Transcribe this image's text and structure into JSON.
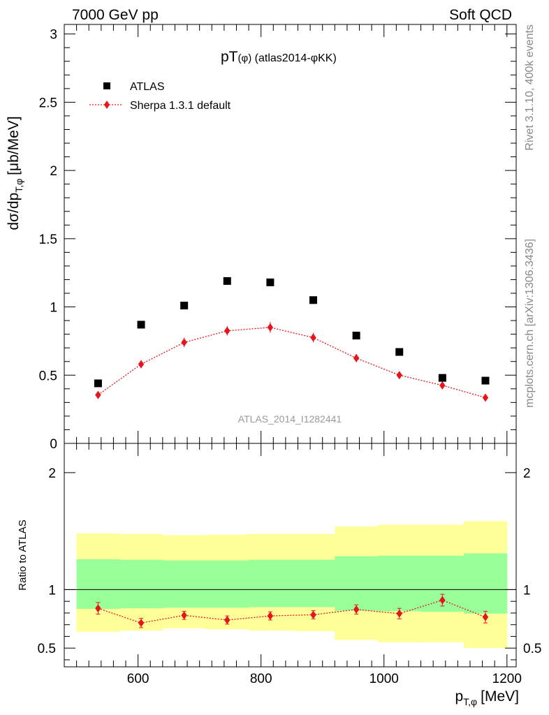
{
  "header": {
    "left": "7000 GeV pp",
    "right": "Soft QCD"
  },
  "side_labels": {
    "rivet": "Rivet 3.1.10,  400k events",
    "mcplots": "mcplots.cern.ch [arXiv:1306.3436]"
  },
  "chart_data": [
    {
      "type": "scatter",
      "title": "pT(φ) (atlas2014-φKK)",
      "title_main": "pT",
      "title_paren": "(φ)",
      "title_rest": " (atlas2014-φKK)",
      "watermark": "ATLAS_2014_I1282441",
      "ylabel": "dσ/dp_{T,φ} [μb/MeV]",
      "ylabel_main": "dσ/dp",
      "ylabel_sub": "T,φ",
      "ylabel_unit": "[μb/MeV]",
      "xlim": [
        480,
        1215
      ],
      "ylim": [
        0,
        3.07
      ],
      "y_ticks": [
        0,
        0.5,
        1,
        1.5,
        2,
        2.5,
        3
      ],
      "y_tick_labels": [
        "0",
        "0.5",
        "1",
        "1.5",
        "2",
        "2.5",
        "3"
      ],
      "legend_position": "top-left",
      "bins": [
        [
          500,
          570
        ],
        [
          570,
          640
        ],
        [
          640,
          710
        ],
        [
          710,
          780
        ],
        [
          780,
          850
        ],
        [
          850,
          920
        ],
        [
          920,
          990
        ],
        [
          990,
          1060
        ],
        [
          1060,
          1130
        ],
        [
          1130,
          1200
        ]
      ],
      "series": [
        {
          "name": "ATLAS",
          "marker": "square",
          "color": "#000000",
          "x": [
            535,
            605,
            675,
            745,
            815,
            885,
            955,
            1025,
            1095,
            1165
          ],
          "y": [
            0.44,
            0.87,
            1.01,
            1.19,
            1.18,
            1.05,
            0.79,
            0.67,
            0.48,
            0.46
          ]
        },
        {
          "name": "Sherpa 1.3.1 default",
          "marker": "diamond",
          "line": "dotted",
          "color": "#e8141d",
          "x": [
            535,
            605,
            675,
            745,
            815,
            885,
            955,
            1025,
            1095,
            1165
          ],
          "y": [
            0.355,
            0.58,
            0.74,
            0.825,
            0.85,
            0.775,
            0.625,
            0.5,
            0.425,
            0.335
          ],
          "yerr": [
            0.02,
            0.03,
            0.035,
            0.035,
            0.04,
            0.035,
            0.03,
            0.025,
            0.025,
            0.02
          ]
        }
      ]
    },
    {
      "type": "scatter",
      "ylabel": "Ratio to ATLAS",
      "xlabel": "p_{T,φ} [MeV]",
      "xlabel_main": "p",
      "xlabel_sub": "T,φ",
      "xlabel_unit": "[MeV]",
      "xlim": [
        480,
        1215
      ],
      "ylim": [
        0.34,
        2.25
      ],
      "x_ticks": [
        600,
        800,
        1000,
        1200
      ],
      "x_tick_labels": [
        "600",
        "800",
        "1000",
        "1200"
      ],
      "y_ticks": [
        0.5,
        1,
        2
      ],
      "y_tick_labels": [
        "0.5",
        "1",
        "2"
      ],
      "reference_line": 1,
      "bands": {
        "outer_color": "#ffff99",
        "inner_color": "#99ff99",
        "outer": [
          [
            0.64,
            1.48
          ],
          [
            0.65,
            1.475
          ],
          [
            0.67,
            1.465
          ],
          [
            0.66,
            1.47
          ],
          [
            0.65,
            1.475
          ],
          [
            0.645,
            1.475
          ],
          [
            0.57,
            1.54
          ],
          [
            0.55,
            1.555
          ],
          [
            0.55,
            1.555
          ],
          [
            0.5,
            1.585
          ]
        ],
        "inner": [
          [
            0.835,
            1.26
          ],
          [
            0.84,
            1.255
          ],
          [
            0.845,
            1.25
          ],
          [
            0.845,
            1.25
          ],
          [
            0.85,
            1.255
          ],
          [
            0.85,
            1.255
          ],
          [
            0.82,
            1.285
          ],
          [
            0.815,
            1.29
          ],
          [
            0.81,
            1.29
          ],
          [
            0.795,
            1.31
          ]
        ]
      },
      "series": [
        {
          "name": "Sherpa 1.3.1 default",
          "marker": "diamond",
          "line": "dotted",
          "color": "#e8141d",
          "x": [
            535,
            605,
            675,
            745,
            815,
            885,
            955,
            1025,
            1095,
            1165
          ],
          "y": [
            0.84,
            0.715,
            0.78,
            0.74,
            0.775,
            0.785,
            0.83,
            0.795,
            0.91,
            0.765
          ],
          "yerr": [
            0.05,
            0.04,
            0.035,
            0.035,
            0.035,
            0.035,
            0.04,
            0.045,
            0.05,
            0.05
          ]
        }
      ]
    }
  ]
}
